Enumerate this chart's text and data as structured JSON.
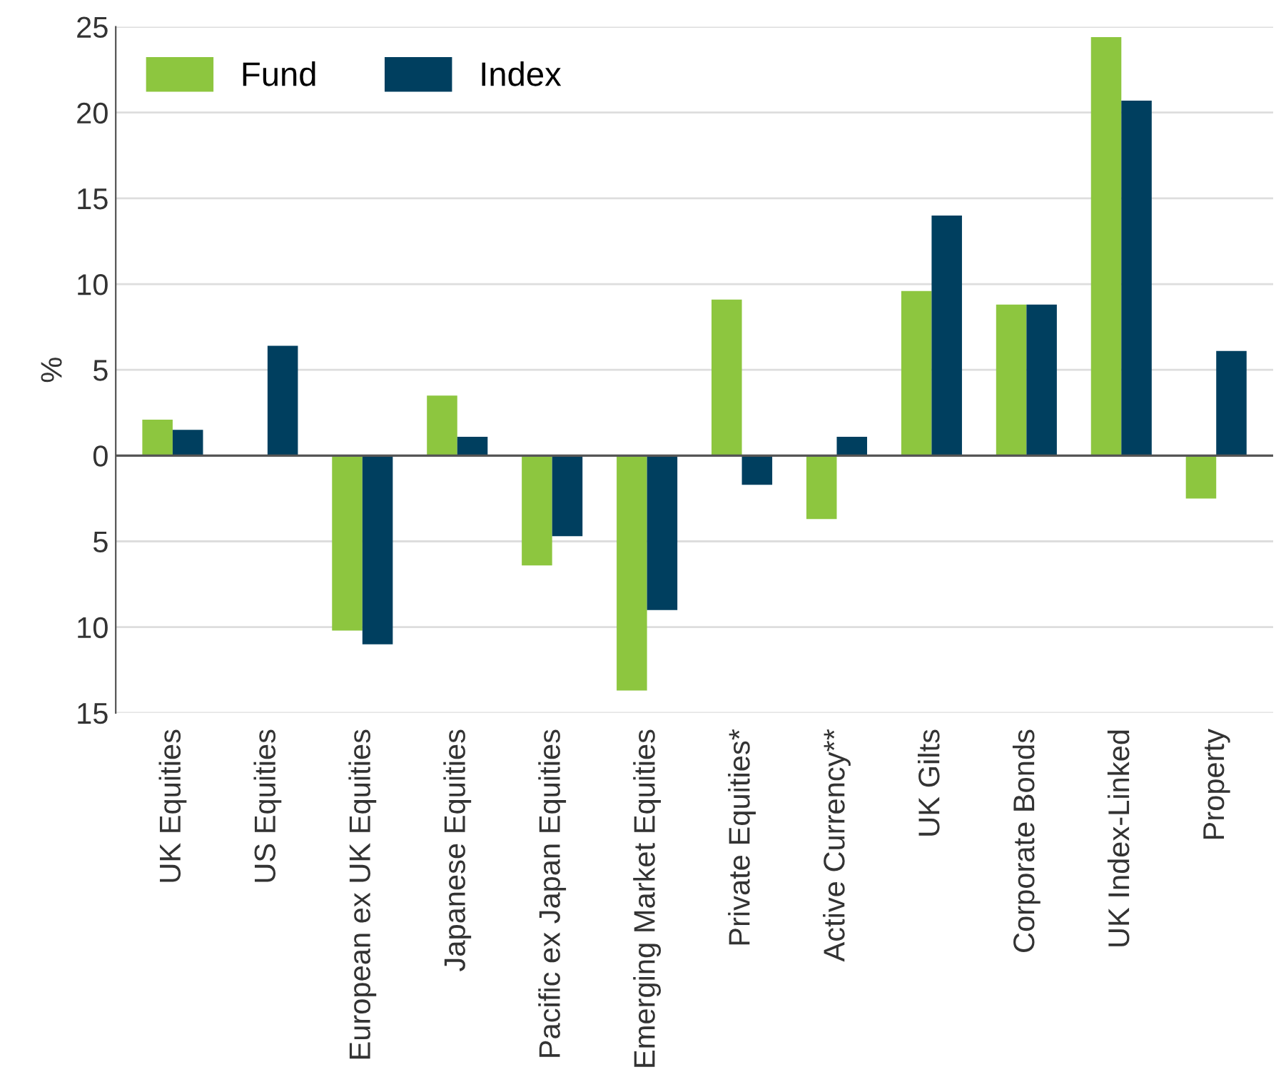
{
  "chart_data": {
    "type": "bar",
    "ylabel": "%",
    "categories": [
      "UK Equities",
      "US Equities",
      "European ex UK Equities",
      "Japanese Equities",
      "Pacific ex Japan Equities",
      "Emerging Market Equities",
      "Private Equities*",
      "Active Currency**",
      "UK Gilts",
      "Corporate Bonds",
      "UK Index-Linked",
      "Property"
    ],
    "series": [
      {
        "name": "Fund",
        "color": "#8dc63f",
        "values": [
          2.1,
          0,
          -10.2,
          3.5,
          -6.4,
          -13.7,
          9.1,
          -3.7,
          9.6,
          8.8,
          24.4,
          -2.5
        ]
      },
      {
        "name": "Index",
        "color": "#003f5f",
        "values": [
          1.5,
          6.4,
          -11,
          1.1,
          -4.7,
          -9,
          -1.7,
          1.1,
          14,
          8.8,
          20.7,
          6.1
        ]
      }
    ],
    "ylim": [
      -15,
      25
    ],
    "yticks": [
      {
        "value": -15,
        "label": "15"
      },
      {
        "value": -10,
        "label": "10"
      },
      {
        "value": -5,
        "label": "5"
      },
      0,
      5,
      10,
      15,
      20,
      25
    ],
    "grid": "y",
    "legend": "top left"
  }
}
